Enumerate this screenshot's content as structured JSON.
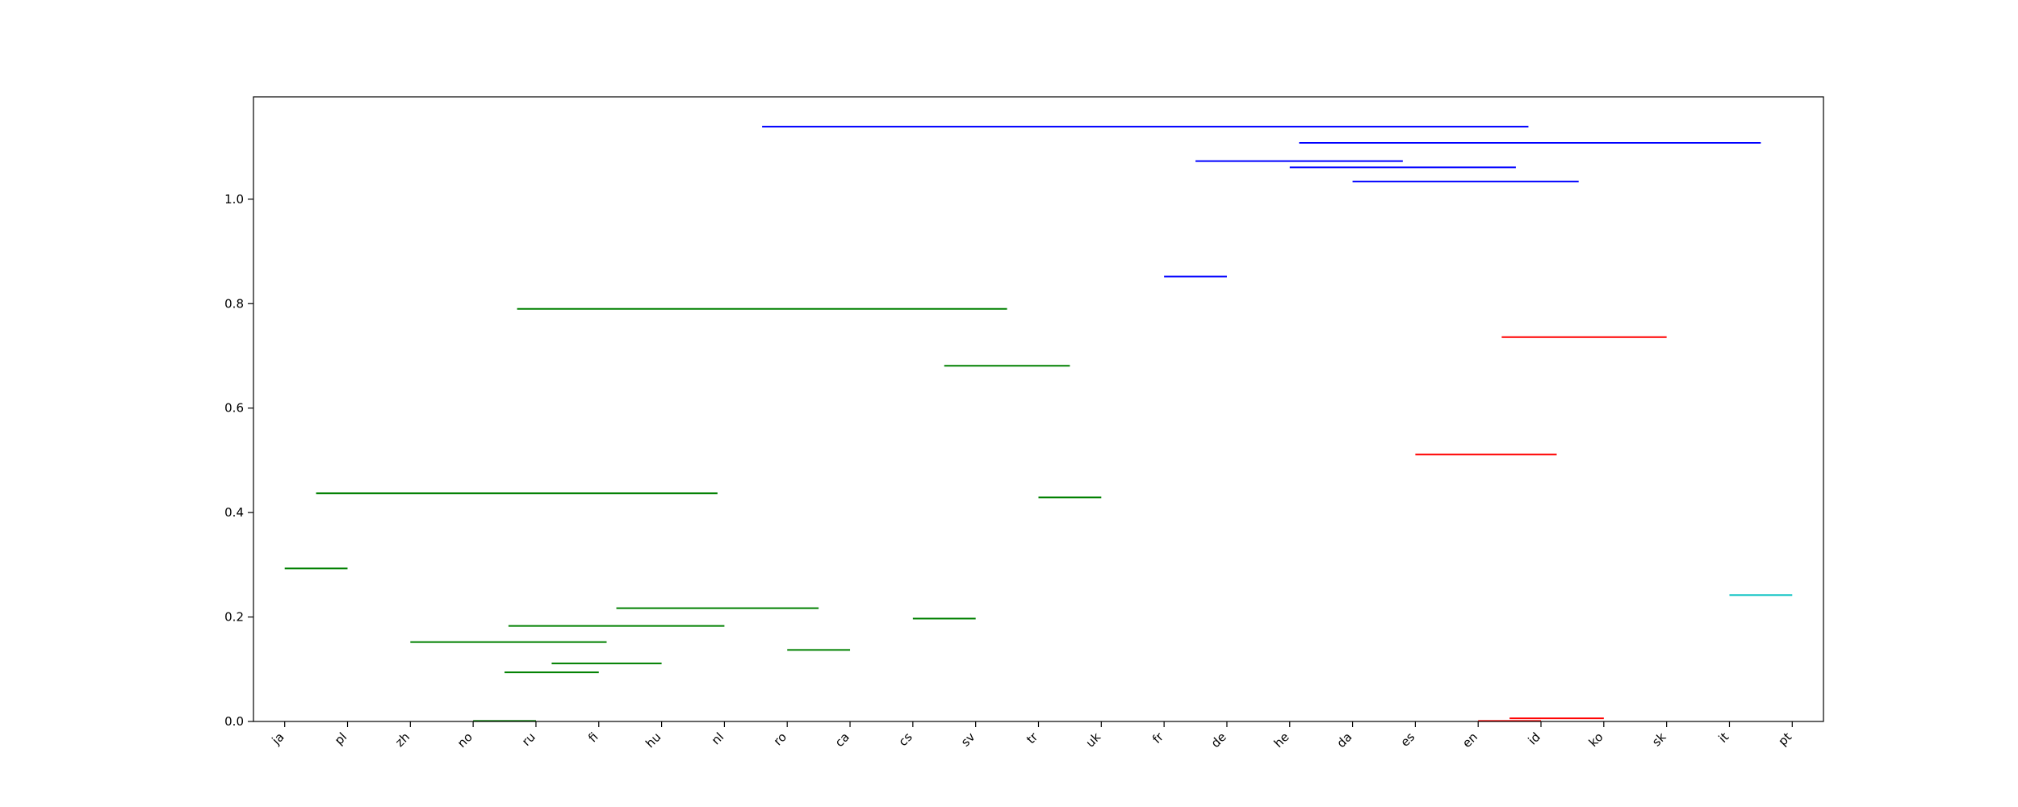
{
  "chart_data": {
    "type": "dendrogram",
    "title": "",
    "xlabel": "",
    "ylabel": "",
    "ylim": [
      0,
      1.196
    ],
    "yticks": [
      0.0,
      0.2,
      0.4,
      0.6,
      0.8,
      1.0
    ],
    "ytick_labels": [
      "0.0",
      "0.2",
      "0.4",
      "0.6",
      "0.8",
      "1.0"
    ],
    "leaves": [
      "ja",
      "pl",
      "zh",
      "no",
      "ru",
      "fi",
      "hu",
      "nl",
      "ro",
      "ca",
      "cs",
      "sv",
      "tr",
      "uk",
      "fr",
      "de",
      "he",
      "da",
      "es",
      "en",
      "id",
      "ko",
      "sk",
      "it",
      "pt"
    ],
    "colors": {
      "green": "#008000",
      "red": "#ff0000",
      "cyan": "#00bfbf",
      "blue": "#0000ff"
    },
    "links": [
      {
        "left": [
          0.0,
          0.293
        ],
        "right": [
          1.0,
          0.293
        ],
        "height": 0.293,
        "color": "green"
      },
      {
        "left": [
          3.0,
          0.001
        ],
        "right": [
          4.0,
          0.001
        ],
        "height": 0.001,
        "color": "green"
      },
      {
        "left": [
          3.5,
          0.094
        ],
        "right": [
          5.0,
          0.094
        ],
        "height": 0.094,
        "color": "green"
      },
      {
        "left": [
          4.25,
          0.111
        ],
        "right": [
          6.0,
          0.111
        ],
        "height": 0.111,
        "color": "green"
      },
      {
        "left": [
          2.0,
          0.152
        ],
        "right": [
          5.125,
          0.152
        ],
        "height": 0.152,
        "color": "green"
      },
      {
        "left": [
          3.5625,
          0.183
        ],
        "right": [
          7.0,
          0.183
        ],
        "height": 0.183,
        "color": "green"
      },
      {
        "left": [
          8.0,
          0.137
        ],
        "right": [
          9.0,
          0.137
        ],
        "height": 0.137,
        "color": "green"
      },
      {
        "left": [
          5.28,
          0.217
        ],
        "right": [
          8.5,
          0.217
        ],
        "height": 0.217,
        "color": "green"
      },
      {
        "left": [
          0.5,
          0.437
        ],
        "right": [
          6.89,
          0.437
        ],
        "height": 0.437,
        "color": "green"
      },
      {
        "left": [
          10.0,
          0.197
        ],
        "right": [
          11.0,
          0.197
        ],
        "height": 0.197,
        "color": "green"
      },
      {
        "left": [
          12.0,
          0.429
        ],
        "right": [
          13.0,
          0.429
        ],
        "height": 0.429,
        "color": "green"
      },
      {
        "left": [
          10.5,
          0.681
        ],
        "right": [
          12.5,
          0.681
        ],
        "height": 0.681,
        "color": "green"
      },
      {
        "left": [
          3.7,
          0.79
        ],
        "right": [
          11.5,
          0.79
        ],
        "height": 0.79,
        "color": "green"
      },
      {
        "left": [
          14.0,
          0.852
        ],
        "right": [
          15.0,
          0.852
        ],
        "height": 0.852,
        "color": "blue"
      },
      {
        "left": [
          19.0,
          0.001
        ],
        "right": [
          20.0,
          0.001
        ],
        "height": 0.001,
        "color": "red"
      },
      {
        "left": [
          19.5,
          0.006
        ],
        "right": [
          21.0,
          0.006
        ],
        "height": 0.006,
        "color": "red"
      },
      {
        "left": [
          18.0,
          0.511
        ],
        "right": [
          20.25,
          0.511
        ],
        "height": 0.511,
        "color": "red"
      },
      {
        "left": [
          19.375,
          0.736
        ],
        "right": [
          22.0,
          0.736
        ],
        "height": 0.736,
        "color": "red"
      },
      {
        "left": [
          17.0,
          1.034
        ],
        "right": [
          20.6,
          1.034
        ],
        "height": 1.034,
        "color": "blue"
      },
      {
        "left": [
          16.0,
          1.061
        ],
        "right": [
          19.6,
          1.061
        ],
        "height": 1.061,
        "color": "blue"
      },
      {
        "left": [
          14.5,
          1.073
        ],
        "right": [
          17.8,
          1.073
        ],
        "height": 1.073,
        "color": "blue"
      },
      {
        "left": [
          23.0,
          0.242
        ],
        "right": [
          24.0,
          0.242
        ],
        "height": 0.242,
        "color": "cyan"
      },
      {
        "left": [
          16.15,
          1.108
        ],
        "right": [
          23.5,
          1.108
        ],
        "height": 1.108,
        "color": "blue"
      },
      {
        "left": [
          7.6,
          1.139
        ],
        "right": [
          19.8,
          1.139
        ],
        "height": 1.139,
        "color": "blue"
      }
    ]
  }
}
